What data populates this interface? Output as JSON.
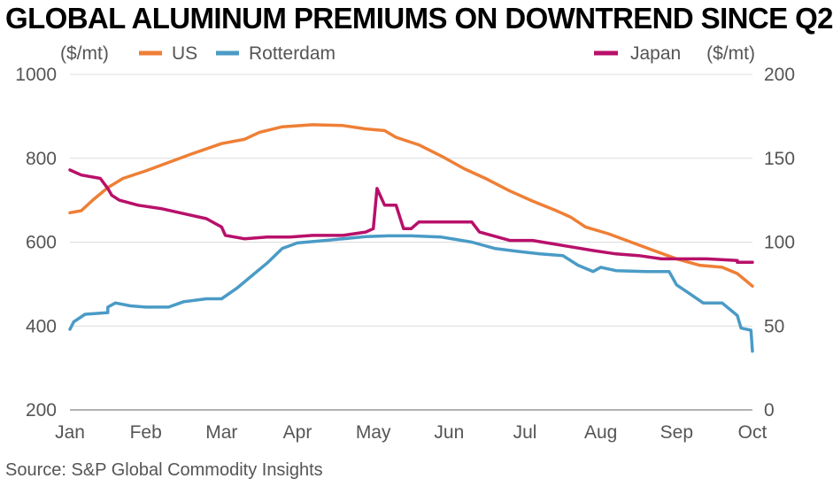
{
  "title": "GLOBAL ALUMINUM PREMIUMS ON DOWNTREND SINCE Q2",
  "source": "Source: S&P Global Commodity Insights",
  "chart_data": {
    "type": "line",
    "left_axis_unit": "($/mt)",
    "right_axis_unit": "($/mt)",
    "y_left": {
      "min": 200,
      "max": 1000,
      "ticks": [
        1000,
        800,
        600,
        400,
        200
      ]
    },
    "y_right": {
      "min": 0,
      "max": 200,
      "ticks": [
        200,
        150,
        100,
        50,
        0
      ]
    },
    "x_range": [
      0,
      9
    ],
    "x_ticks": [
      {
        "pos": 0,
        "label": "Jan"
      },
      {
        "pos": 1,
        "label": "Feb"
      },
      {
        "pos": 2,
        "label": "Mar"
      },
      {
        "pos": 3,
        "label": "Apr"
      },
      {
        "pos": 4,
        "label": "May"
      },
      {
        "pos": 5,
        "label": "Jun"
      },
      {
        "pos": 6,
        "label": "Jul"
      },
      {
        "pos": 7,
        "label": "Aug"
      },
      {
        "pos": 8,
        "label": "Sep"
      },
      {
        "pos": 9,
        "label": "Oct"
      }
    ],
    "grid": true,
    "series": [
      {
        "name": "US",
        "axis": "left",
        "color": "#ee7f36",
        "points": [
          [
            0,
            670
          ],
          [
            0.15,
            675
          ],
          [
            0.3,
            700
          ],
          [
            0.5,
            730
          ],
          [
            0.7,
            752
          ],
          [
            1.0,
            770
          ],
          [
            1.3,
            790
          ],
          [
            1.6,
            810
          ],
          [
            2.0,
            835
          ],
          [
            2.3,
            845
          ],
          [
            2.5,
            862
          ],
          [
            2.8,
            875
          ],
          [
            3.2,
            880
          ],
          [
            3.6,
            878
          ],
          [
            3.9,
            870
          ],
          [
            4.15,
            866
          ],
          [
            4.3,
            850
          ],
          [
            4.6,
            832
          ],
          [
            4.9,
            805
          ],
          [
            5.2,
            775
          ],
          [
            5.5,
            750
          ],
          [
            5.8,
            722
          ],
          [
            6.1,
            698
          ],
          [
            6.4,
            676
          ],
          [
            6.6,
            660
          ],
          [
            6.8,
            636
          ],
          [
            7.1,
            620
          ],
          [
            7.4,
            600
          ],
          [
            7.7,
            580
          ],
          [
            8.0,
            560
          ],
          [
            8.3,
            545
          ],
          [
            8.6,
            540
          ],
          [
            8.8,
            525
          ],
          [
            9.0,
            495
          ]
        ]
      },
      {
        "name": "Rotterdam",
        "axis": "left",
        "color": "#4a9bc6",
        "points": [
          [
            0,
            392
          ],
          [
            0.05,
            410
          ],
          [
            0.2,
            428
          ],
          [
            0.5,
            432
          ],
          [
            0.5,
            445
          ],
          [
            0.6,
            455
          ],
          [
            0.8,
            448
          ],
          [
            1.0,
            445
          ],
          [
            1.3,
            445
          ],
          [
            1.5,
            458
          ],
          [
            1.8,
            465
          ],
          [
            2.0,
            465
          ],
          [
            2.2,
            490
          ],
          [
            2.4,
            520
          ],
          [
            2.6,
            550
          ],
          [
            2.8,
            585
          ],
          [
            3.0,
            598
          ],
          [
            3.3,
            603
          ],
          [
            3.6,
            608
          ],
          [
            3.9,
            613
          ],
          [
            4.2,
            615
          ],
          [
            4.5,
            615
          ],
          [
            4.9,
            612
          ],
          [
            5.3,
            600
          ],
          [
            5.6,
            585
          ],
          [
            5.9,
            578
          ],
          [
            6.2,
            572
          ],
          [
            6.5,
            568
          ],
          [
            6.7,
            545
          ],
          [
            6.9,
            530
          ],
          [
            7.0,
            540
          ],
          [
            7.2,
            532
          ],
          [
            7.6,
            530
          ],
          [
            7.9,
            530
          ],
          [
            8.0,
            498
          ],
          [
            8.15,
            480
          ],
          [
            8.35,
            455
          ],
          [
            8.6,
            455
          ],
          [
            8.8,
            425
          ],
          [
            8.85,
            395
          ],
          [
            8.98,
            390
          ],
          [
            9.0,
            340
          ]
        ]
      },
      {
        "name": "Japan",
        "axis": "right",
        "color": "#b8106a",
        "points": [
          [
            0,
            143
          ],
          [
            0.15,
            140
          ],
          [
            0.4,
            138
          ],
          [
            0.5,
            132
          ],
          [
            0.55,
            128
          ],
          [
            0.65,
            125
          ],
          [
            0.9,
            122
          ],
          [
            1.2,
            120
          ],
          [
            1.5,
            117
          ],
          [
            1.8,
            114
          ],
          [
            2.0,
            109
          ],
          [
            2.05,
            104
          ],
          [
            2.3,
            102
          ],
          [
            2.6,
            103
          ],
          [
            2.9,
            103
          ],
          [
            3.2,
            104
          ],
          [
            3.6,
            104
          ],
          [
            3.9,
            106
          ],
          [
            4.0,
            108
          ],
          [
            4.05,
            132
          ],
          [
            4.15,
            122
          ],
          [
            4.3,
            122
          ],
          [
            4.4,
            108
          ],
          [
            4.5,
            108
          ],
          [
            4.6,
            112
          ],
          [
            5.0,
            112
          ],
          [
            5.3,
            112
          ],
          [
            5.4,
            106
          ],
          [
            5.8,
            101
          ],
          [
            6.1,
            101
          ],
          [
            6.5,
            98
          ],
          [
            6.9,
            95
          ],
          [
            7.2,
            93
          ],
          [
            7.5,
            92
          ],
          [
            7.8,
            90
          ],
          [
            8.0,
            90
          ],
          [
            8.4,
            90
          ],
          [
            8.8,
            89
          ],
          [
            8.8,
            88
          ],
          [
            9.0,
            88
          ]
        ]
      }
    ],
    "legend": [
      {
        "label": "($/mt)",
        "color": ""
      },
      {
        "label": "US",
        "color": "#ee7f36"
      },
      {
        "label": "Rotterdam",
        "color": "#4a9bc6"
      },
      {
        "label": "Japan",
        "color": "#b8106a"
      },
      {
        "label": "($/mt)",
        "color": ""
      }
    ]
  }
}
